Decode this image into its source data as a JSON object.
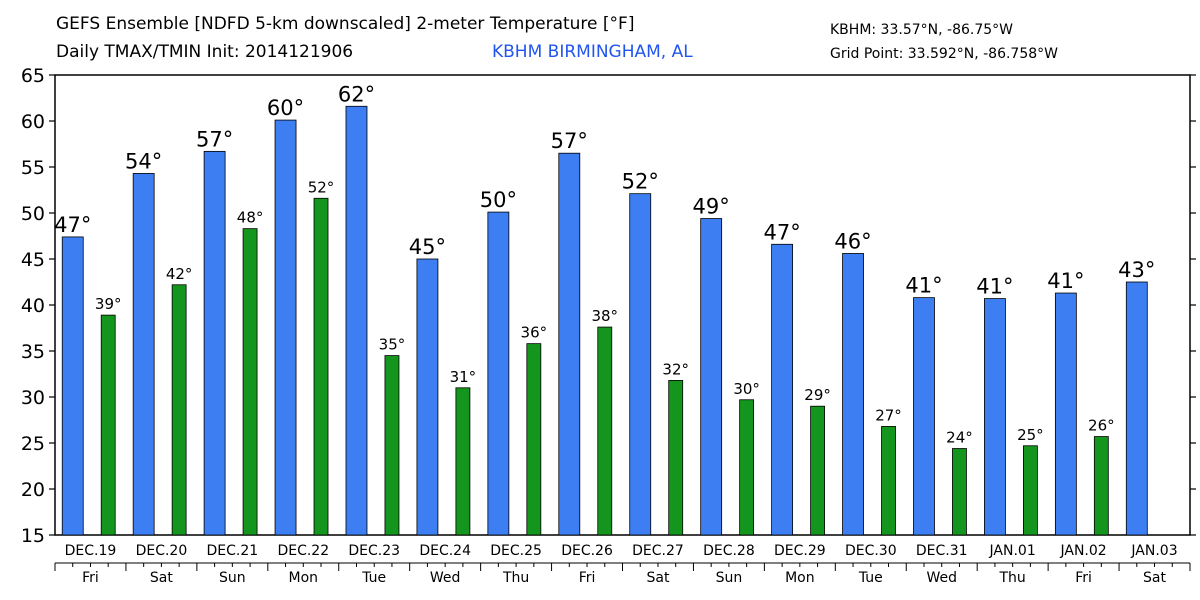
{
  "header": {
    "title_line1": "GEFS Ensemble [NDFD 5-km downscaled] 2-meter Temperature [°F]",
    "title_line2": "Daily TMAX/TMIN Init: 2014121906",
    "station_name": "KBHM BIRMINGHAM, AL",
    "station_coords": "KBHM: 33.57°N, -86.75°W",
    "grid_point": "Grid Point: 33.592°N, -86.758°W"
  },
  "colors": {
    "tmax": "#3d7ff2",
    "tmin": "#14961e",
    "station_text": "#2255ee"
  },
  "chart_data": {
    "type": "bar",
    "ylim": [
      15,
      65
    ],
    "yticks": [
      15,
      20,
      25,
      30,
      35,
      40,
      45,
      50,
      55,
      60,
      65
    ],
    "grid": false,
    "dates": [
      "DEC.19",
      "DEC.20",
      "DEC.21",
      "DEC.22",
      "DEC.23",
      "DEC.24",
      "DEC.25",
      "DEC.26",
      "DEC.27",
      "DEC.28",
      "DEC.29",
      "DEC.30",
      "DEC.31",
      "JAN.01",
      "JAN.02",
      "JAN.03"
    ],
    "weekdays": [
      "Fri",
      "Sat",
      "Sun",
      "Mon",
      "Tue",
      "Wed",
      "Thu",
      "Fri",
      "Sat",
      "Sun",
      "Mon",
      "Tue",
      "Wed",
      "Thu",
      "Fri",
      "Sat"
    ],
    "tmax": {
      "values": [
        47.4,
        54.3,
        56.7,
        60.1,
        61.6,
        45.0,
        50.1,
        56.5,
        52.1,
        49.4,
        46.6,
        45.6,
        40.8,
        40.7,
        41.3,
        42.5
      ],
      "labels": [
        "47°",
        "54°",
        "57°",
        "60°",
        "62°",
        "45°",
        "50°",
        "57°",
        "52°",
        "49°",
        "47°",
        "46°",
        "41°",
        "41°",
        "41°",
        "43°"
      ]
    },
    "tmin": {
      "values": [
        38.9,
        42.2,
        48.3,
        51.6,
        34.5,
        31.0,
        35.8,
        37.6,
        31.8,
        29.7,
        29.0,
        26.8,
        24.4,
        24.7,
        25.7
      ],
      "labels": [
        "39°",
        "42°",
        "48°",
        "52°",
        "35°",
        "31°",
        "36°",
        "38°",
        "32°",
        "30°",
        "29°",
        "27°",
        "24°",
        "25°",
        "26°"
      ]
    }
  }
}
